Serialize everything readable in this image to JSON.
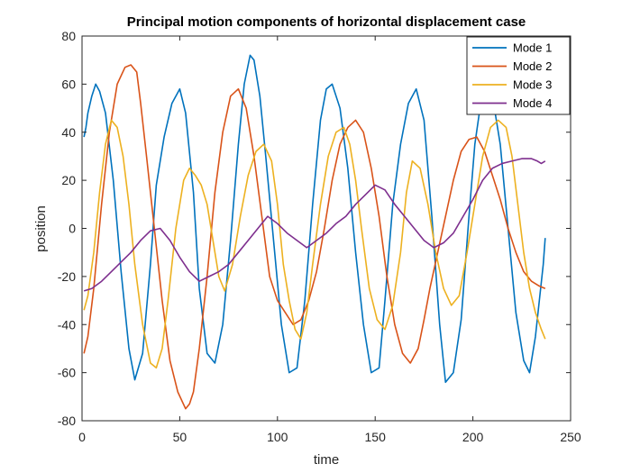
{
  "chart_data": {
    "type": "line",
    "title": "Principal motion components of horizontal displacement case",
    "xlabel": "time",
    "ylabel": "position",
    "xlim": [
      0,
      250
    ],
    "ylim": [
      -80,
      80
    ],
    "xticks": [
      0,
      50,
      100,
      150,
      200,
      250
    ],
    "yticks": [
      -80,
      -60,
      -40,
      -20,
      0,
      20,
      40,
      60,
      80
    ],
    "grid": false,
    "legend_position": "top-right",
    "series": [
      {
        "name": "Mode 1",
        "color": "#0072BD",
        "x": [
          1,
          2,
          3,
          5,
          7,
          9,
          12,
          16,
          20,
          24,
          27,
          31,
          35,
          38,
          42,
          46,
          50,
          53,
          57,
          60,
          64,
          68,
          72,
          76,
          80,
          83,
          86,
          88,
          91,
          94,
          98,
          102,
          106,
          110,
          114,
          118,
          122,
          125,
          128,
          132,
          136,
          140,
          144,
          148,
          152,
          155,
          159,
          163,
          167,
          171,
          175,
          179,
          183,
          186,
          190,
          194,
          198,
          201,
          204,
          207,
          210,
          214,
          218,
          222,
          226,
          229,
          232,
          234,
          236,
          237
        ],
        "y": [
          38,
          42,
          48,
          55,
          60,
          57,
          48,
          20,
          -18,
          -50,
          -63,
          -52,
          -15,
          18,
          38,
          52,
          58,
          48,
          15,
          -25,
          -52,
          -56,
          -40,
          -5,
          35,
          60,
          72,
          70,
          55,
          30,
          -5,
          -40,
          -60,
          -58,
          -30,
          10,
          45,
          58,
          60,
          50,
          25,
          -10,
          -40,
          -60,
          -58,
          -30,
          10,
          35,
          52,
          58,
          45,
          5,
          -40,
          -64,
          -60,
          -38,
          5,
          35,
          52,
          60,
          55,
          35,
          0,
          -35,
          -55,
          -60,
          -45,
          -30,
          -15,
          -4
        ]
      },
      {
        "name": "Mode 2",
        "color": "#D95319",
        "x": [
          1,
          3,
          6,
          10,
          14,
          18,
          22,
          25,
          28,
          30,
          33,
          37,
          41,
          45,
          49,
          53,
          55,
          57,
          60,
          64,
          68,
          72,
          76,
          80,
          84,
          88,
          92,
          96,
          100,
          104,
          108,
          112,
          116,
          120,
          124,
          128,
          132,
          136,
          140,
          144,
          148,
          152,
          156,
          160,
          164,
          168,
          172,
          175,
          178,
          182,
          186,
          190,
          194,
          198,
          202,
          206,
          210,
          214,
          218,
          222,
          226,
          230,
          234,
          237
        ],
        "y": [
          -52,
          -45,
          -25,
          10,
          40,
          60,
          67,
          68,
          65,
          52,
          30,
          0,
          -30,
          -55,
          -68,
          -75,
          -73,
          -68,
          -50,
          -20,
          15,
          40,
          55,
          58,
          50,
          30,
          5,
          -20,
          -30,
          -35,
          -40,
          -38,
          -30,
          -18,
          0,
          20,
          35,
          42,
          45,
          40,
          25,
          5,
          -20,
          -40,
          -52,
          -56,
          -50,
          -38,
          -25,
          -10,
          5,
          20,
          32,
          37,
          38,
          32,
          22,
          12,
          0,
          -10,
          -18,
          -22,
          -24,
          -25
        ]
      },
      {
        "name": "Mode 3",
        "color": "#EDB120",
        "x": [
          1,
          3,
          6,
          9,
          12,
          15,
          18,
          21,
          24,
          27,
          31,
          35,
          38,
          41,
          44,
          48,
          52,
          55,
          58,
          61,
          64,
          67,
          70,
          73,
          77,
          81,
          85,
          89,
          93,
          97,
          100,
          103,
          106,
          109,
          112,
          115,
          118,
          122,
          126,
          130,
          134,
          137,
          140,
          143,
          147,
          151,
          155,
          159,
          163,
          166,
          169,
          173,
          177,
          181,
          185,
          189,
          193,
          197,
          201,
          205,
          209,
          213,
          217,
          220,
          223,
          226,
          229,
          232,
          235,
          237
        ],
        "y": [
          -34,
          -28,
          -10,
          15,
          35,
          45,
          42,
          30,
          10,
          -15,
          -40,
          -56,
          -58,
          -50,
          -30,
          0,
          20,
          25,
          22,
          18,
          10,
          -5,
          -20,
          -26,
          -15,
          5,
          22,
          32,
          35,
          28,
          10,
          -15,
          -30,
          -42,
          -46,
          -35,
          -15,
          10,
          30,
          40,
          42,
          35,
          20,
          0,
          -25,
          -38,
          -42,
          -32,
          -10,
          15,
          28,
          25,
          10,
          -10,
          -25,
          -32,
          -28,
          -10,
          10,
          30,
          42,
          45,
          42,
          30,
          10,
          -10,
          -25,
          -35,
          -42,
          -46
        ]
      },
      {
        "name": "Mode 4",
        "color": "#7E2F8E",
        "x": [
          1,
          5,
          10,
          15,
          20,
          25,
          30,
          35,
          40,
          45,
          50,
          55,
          60,
          65,
          70,
          75,
          80,
          85,
          90,
          95,
          100,
          105,
          110,
          115,
          120,
          125,
          130,
          135,
          140,
          145,
          150,
          155,
          160,
          165,
          170,
          175,
          180,
          185,
          190,
          195,
          200,
          205,
          210,
          215,
          220,
          225,
          230,
          233,
          235,
          237
        ],
        "y": [
          -26,
          -25,
          -22,
          -18,
          -14,
          -10,
          -5,
          -1,
          0,
          -5,
          -12,
          -18,
          -22,
          -20,
          -18,
          -15,
          -10,
          -5,
          0,
          5,
          2,
          -2,
          -5,
          -8,
          -5,
          -2,
          2,
          5,
          10,
          14,
          18,
          16,
          10,
          5,
          0,
          -5,
          -8,
          -6,
          -2,
          5,
          12,
          20,
          25,
          27,
          28,
          29,
          29,
          28,
          27,
          28
        ]
      }
    ]
  }
}
